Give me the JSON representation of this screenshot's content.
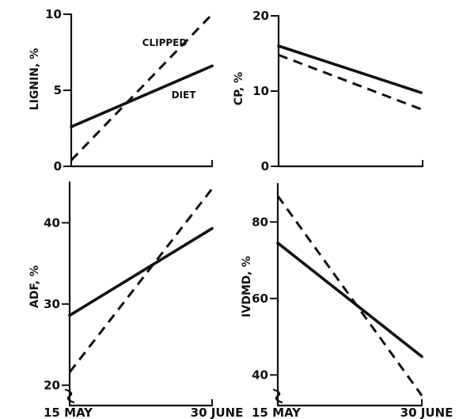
{
  "chart_data": [
    {
      "type": "line",
      "panel": "top-left",
      "ylabel": "LIGNIN, %",
      "xlabel": "",
      "x_ticks": [],
      "ylim": [
        0,
        10
      ],
      "y_ticks": [
        0,
        5,
        10
      ],
      "x": [
        "15 MAY",
        "30 JUNE"
      ],
      "series": [
        {
          "name": "DIET",
          "style": "solid",
          "values": [
            2.6,
            6.6
          ]
        },
        {
          "name": "CLIPPED",
          "style": "dashed",
          "values": [
            0.4,
            10.0
          ]
        }
      ],
      "annotations": [
        "CLIPPED",
        "DIET"
      ]
    },
    {
      "type": "line",
      "panel": "top-right",
      "ylabel": "CP, %",
      "xlabel": "",
      "x_ticks": [],
      "ylim": [
        0,
        20
      ],
      "y_ticks": [
        0,
        10,
        20
      ],
      "x": [
        "15 MAY",
        "30 JUNE"
      ],
      "series": [
        {
          "style": "solid",
          "values": [
            16.0,
            9.8
          ]
        },
        {
          "style": "dashed",
          "values": [
            14.8,
            7.6
          ]
        }
      ]
    },
    {
      "type": "line",
      "panel": "bottom-left",
      "ylabel": "ADF, %",
      "xlabel": "",
      "x_ticks": [
        "15 MAY",
        "30 JUNE"
      ],
      "ylim": [
        17.5,
        45
      ],
      "y_ticks": [
        20,
        30,
        40
      ],
      "axis_break": true,
      "x": [
        "15 MAY",
        "30 JUNE"
      ],
      "series": [
        {
          "style": "solid",
          "values": [
            28.6,
            39.3
          ]
        },
        {
          "style": "dashed",
          "values": [
            21.6,
            44.2
          ]
        }
      ]
    },
    {
      "type": "line",
      "panel": "bottom-right",
      "ylabel": "IVDMD, %",
      "xlabel": "",
      "x_ticks": [
        "15 MAY",
        "30 JUNE"
      ],
      "ylim": [
        32,
        90
      ],
      "y_ticks": [
        40,
        60,
        80
      ],
      "axis_break": true,
      "x": [
        "15 MAY",
        "30 JUNE"
      ],
      "series": [
        {
          "style": "solid",
          "values": [
            74.5,
            44.8
          ]
        },
        {
          "style": "dashed",
          "values": [
            86.8,
            34.6
          ]
        }
      ]
    }
  ]
}
